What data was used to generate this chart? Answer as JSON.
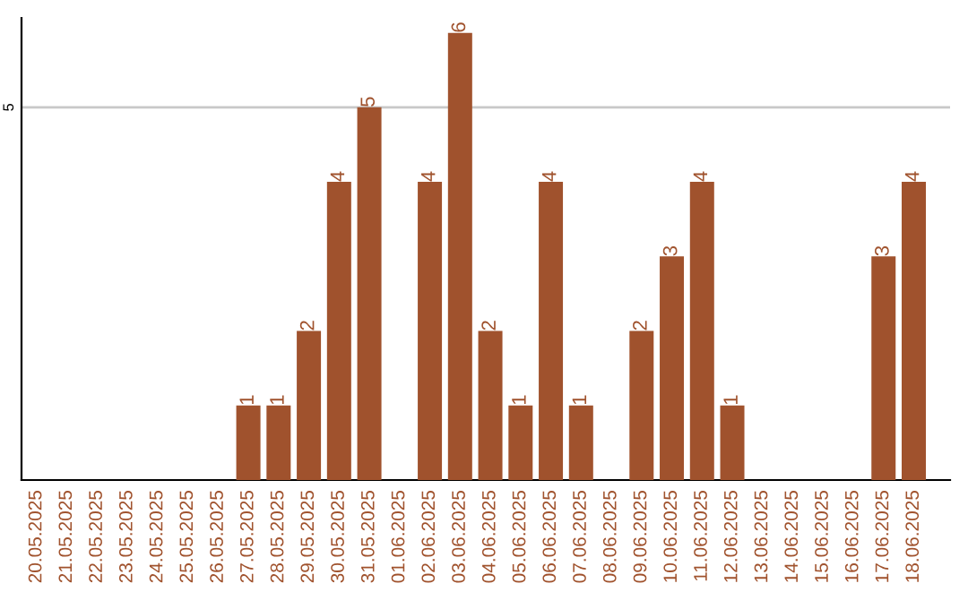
{
  "chart_data": {
    "type": "bar",
    "categories": [
      "20.05.2025",
      "21.05.2025",
      "22.05.2025",
      "23.05.2025",
      "24.05.2025",
      "25.05.2025",
      "26.05.2025",
      "27.05.2025",
      "28.05.2025",
      "29.05.2025",
      "30.05.2025",
      "31.05.2025",
      "01.06.2025",
      "02.06.2025",
      "03.06.2025",
      "04.06.2025",
      "05.06.2025",
      "06.06.2025",
      "07.06.2025",
      "08.06.2025",
      "09.06.2025",
      "10.06.2025",
      "11.06.2025",
      "12.06.2025",
      "13.06.2025",
      "14.06.2025",
      "15.06.2025",
      "16.06.2025",
      "17.06.2025",
      "18.06.2025"
    ],
    "values": [
      0,
      0,
      0,
      0,
      0,
      0,
      0,
      1,
      1,
      2,
      4,
      5,
      0,
      4,
      6,
      2,
      1,
      4,
      1,
      0,
      2,
      3,
      4,
      1,
      0,
      0,
      0,
      0,
      3,
      4
    ],
    "value_labels": [
      null,
      null,
      null,
      null,
      null,
      null,
      null,
      "1",
      "1",
      "2",
      "4",
      "5",
      null,
      "4",
      "6",
      "2",
      "1",
      "4",
      "1",
      null,
      "2",
      "3",
      "4",
      "1",
      null,
      null,
      null,
      null,
      "3",
      "4"
    ],
    "color": "#a0522d",
    "ylim": [
      0,
      6.2
    ],
    "yticks": [
      5
    ],
    "grid": "y",
    "legend": false
  }
}
